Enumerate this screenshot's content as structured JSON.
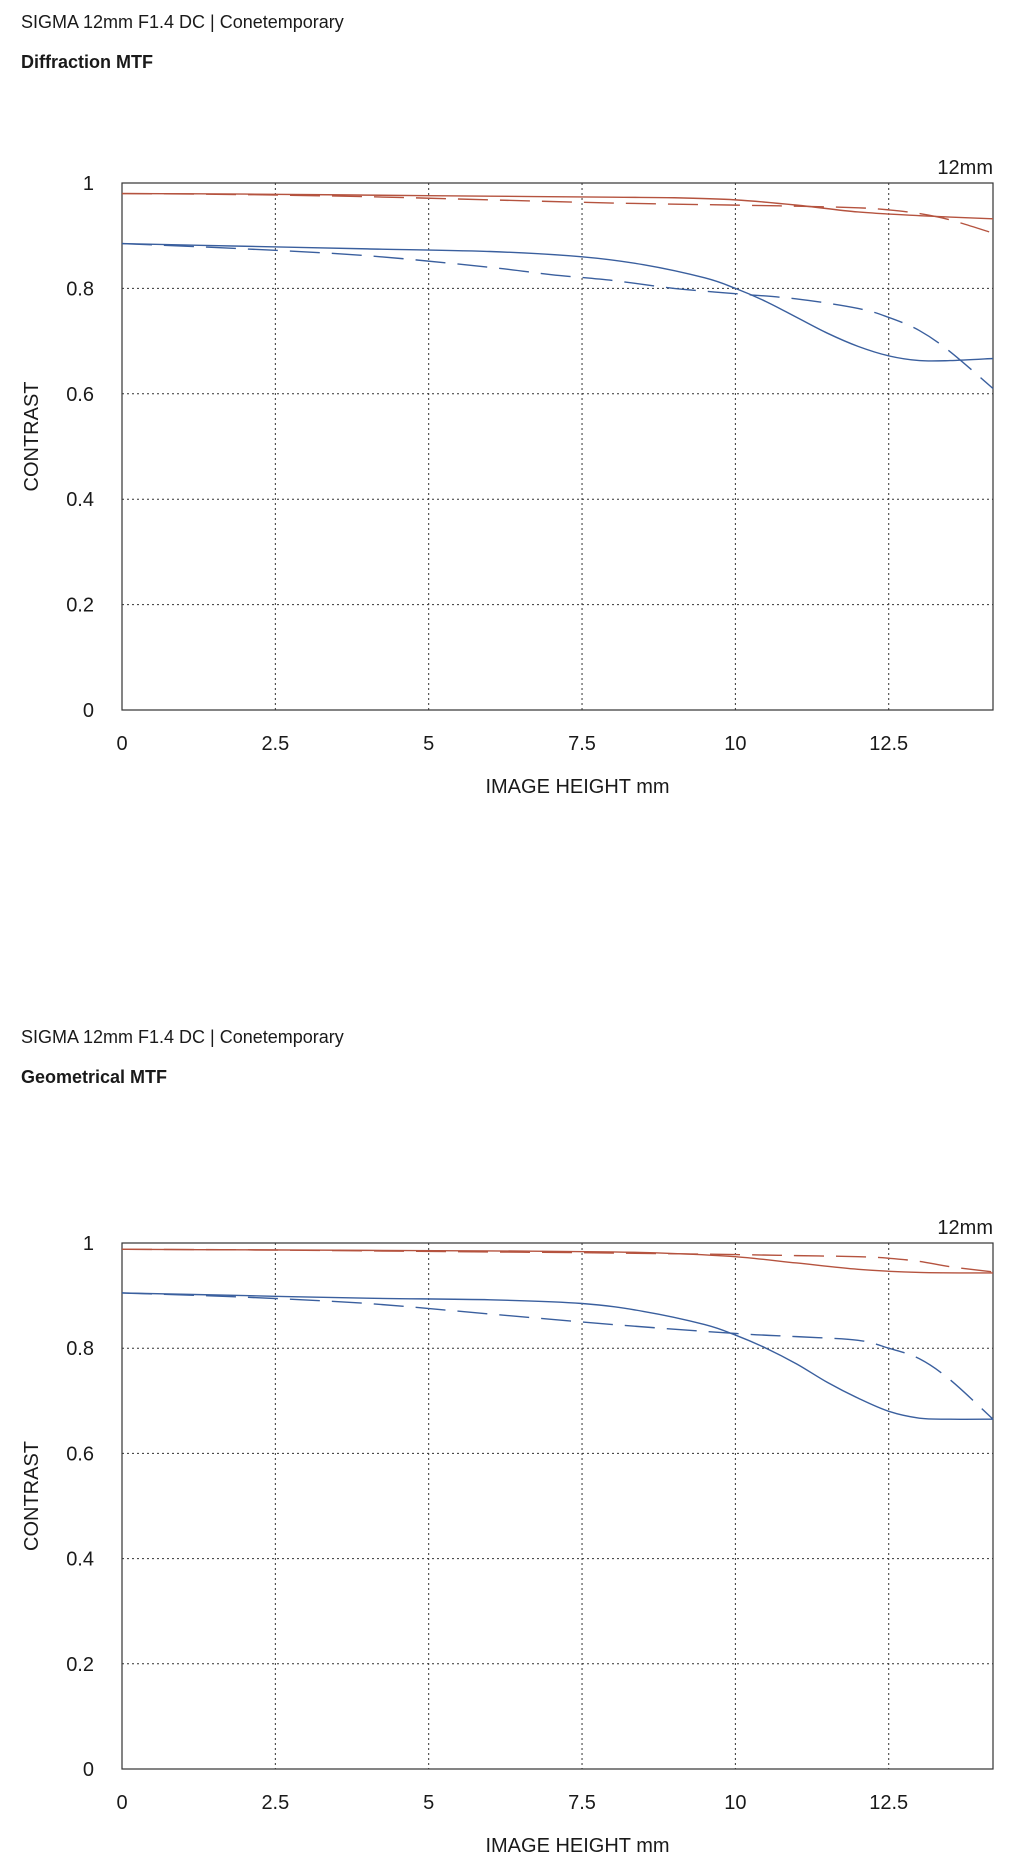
{
  "panels": [
    {
      "title": "SIGMA 12mm F1.4 DC | Conetemporary",
      "subtitle": "Diffraction MTF"
    },
    {
      "title": "SIGMA 12mm F1.4 DC | Conetemporary",
      "subtitle": "Geometrical MTF"
    }
  ],
  "chart_data": [
    {
      "type": "line",
      "title": "Diffraction MTF",
      "annotation": "12mm",
      "xlabel": "IMAGE HEIGHT  mm",
      "ylabel": "CONTRAST",
      "xlim": [
        0,
        14.2
      ],
      "ylim": [
        0,
        1
      ],
      "xticks": [
        0,
        2.5,
        5,
        7.5,
        10,
        12.5
      ],
      "xtick_labels": [
        "0",
        "2.5",
        "5",
        "7.5",
        "10",
        "12.5"
      ],
      "yticks": [
        0,
        0.2,
        0.4,
        0.6,
        0.8,
        1
      ],
      "ytick_labels": [
        "0",
        "0.2",
        "0.4",
        "0.6",
        "0.8",
        "1"
      ],
      "grid": true,
      "series": [
        {
          "color": "#b5533f",
          "style": "solid",
          "x": [
            0,
            2,
            4,
            6,
            8,
            9,
            10,
            11,
            12,
            13,
            14.2
          ],
          "y": [
            0.98,
            0.979,
            0.977,
            0.975,
            0.973,
            0.972,
            0.968,
            0.958,
            0.945,
            0.938,
            0.932
          ]
        },
        {
          "color": "#b5533f",
          "style": "dashed",
          "x": [
            0,
            2,
            4,
            6,
            8,
            10,
            11,
            12,
            12.5,
            13,
            13.5,
            14.2
          ],
          "y": [
            0.98,
            0.978,
            0.974,
            0.968,
            0.962,
            0.958,
            0.956,
            0.953,
            0.949,
            0.942,
            0.93,
            0.905
          ]
        },
        {
          "color": "#3a5f9e",
          "style": "solid",
          "x": [
            0,
            2,
            4,
            6,
            7.5,
            8.5,
            9.5,
            10,
            10.5,
            11,
            11.5,
            12,
            12.5,
            13,
            13.5,
            14.2
          ],
          "y": [
            0.885,
            0.88,
            0.875,
            0.87,
            0.86,
            0.845,
            0.82,
            0.8,
            0.775,
            0.745,
            0.715,
            0.69,
            0.672,
            0.663,
            0.663,
            0.667
          ]
        },
        {
          "color": "#3a5f9e",
          "style": "dashed",
          "x": [
            0,
            2,
            4,
            6,
            7,
            8,
            9,
            10,
            11,
            12,
            12.5,
            13,
            13.5,
            14.2
          ],
          "y": [
            0.885,
            0.875,
            0.862,
            0.84,
            0.826,
            0.815,
            0.8,
            0.79,
            0.78,
            0.762,
            0.745,
            0.72,
            0.68,
            0.61
          ]
        }
      ]
    },
    {
      "type": "line",
      "title": "Geometrical MTF",
      "annotation": "12mm",
      "xlabel": "IMAGE HEIGHT  mm",
      "ylabel": "CONTRAST",
      "xlim": [
        0,
        14.2
      ],
      "ylim": [
        0,
        1
      ],
      "xticks": [
        0,
        2.5,
        5,
        7.5,
        10,
        12.5
      ],
      "xtick_labels": [
        "0",
        "2.5",
        "5",
        "7.5",
        "10",
        "12.5"
      ],
      "yticks": [
        0,
        0.2,
        0.4,
        0.6,
        0.8,
        1
      ],
      "ytick_labels": [
        "0",
        "0.2",
        "0.4",
        "0.6",
        "0.8",
        "1"
      ],
      "grid": true,
      "series": [
        {
          "color": "#b5533f",
          "style": "solid",
          "x": [
            0,
            2,
            4,
            6,
            8,
            9,
            10,
            11,
            12,
            13,
            14.2
          ],
          "y": [
            0.988,
            0.987,
            0.986,
            0.985,
            0.983,
            0.98,
            0.974,
            0.962,
            0.95,
            0.944,
            0.943
          ]
        },
        {
          "color": "#b5533f",
          "style": "dashed",
          "x": [
            0,
            2,
            4,
            6,
            8,
            10,
            11,
            12,
            12.5,
            13,
            13.5,
            14.2
          ],
          "y": [
            0.988,
            0.987,
            0.985,
            0.983,
            0.981,
            0.978,
            0.976,
            0.974,
            0.971,
            0.965,
            0.955,
            0.945
          ]
        },
        {
          "color": "#3a5f9e",
          "style": "solid",
          "x": [
            0,
            2,
            4,
            6,
            7.5,
            8.5,
            9.5,
            10,
            10.5,
            11,
            11.5,
            12,
            12.5,
            13,
            13.5,
            14.2
          ],
          "y": [
            0.905,
            0.9,
            0.895,
            0.892,
            0.885,
            0.87,
            0.845,
            0.825,
            0.8,
            0.77,
            0.735,
            0.705,
            0.68,
            0.667,
            0.665,
            0.665
          ]
        },
        {
          "color": "#3a5f9e",
          "style": "dashed",
          "x": [
            0,
            2,
            4,
            6,
            8,
            10,
            11,
            12,
            12.5,
            13,
            13.5,
            14.2
          ],
          "y": [
            0.905,
            0.897,
            0.885,
            0.865,
            0.845,
            0.828,
            0.822,
            0.815,
            0.8,
            0.78,
            0.74,
            0.665
          ]
        }
      ]
    }
  ]
}
